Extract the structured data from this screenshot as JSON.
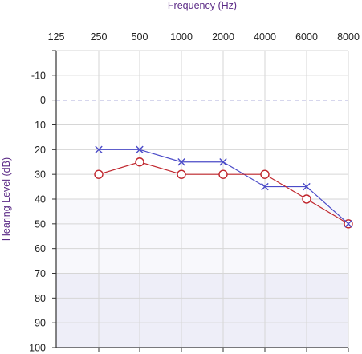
{
  "chart_data": {
    "type": "line",
    "title": "",
    "xlabel": "Frequency (Hz)",
    "ylabel": "Hearing Level (dB)",
    "x_categories": [
      "125",
      "250",
      "500",
      "1000",
      "2000",
      "4000",
      "6000",
      "8000"
    ],
    "y_ticks": [
      "-10",
      "0",
      "10",
      "20",
      "30",
      "40",
      "50",
      "60",
      "70",
      "80",
      "90",
      "100"
    ],
    "ylim": [
      -20,
      100
    ],
    "y_inverted": true,
    "grid": true,
    "reference_line": {
      "y": 0,
      "style": "dashed",
      "color": "#5b5bb8"
    },
    "shaded_bands": [
      {
        "from": 40,
        "to": 70,
        "color": "#f8f8fc"
      },
      {
        "from": 70,
        "to": 100,
        "color": "#eeeef8"
      }
    ],
    "series": [
      {
        "marker": "x",
        "color": "#4b4bc8",
        "points": [
          {
            "x": "250",
            "y": 20
          },
          {
            "x": "500",
            "y": 20
          },
          {
            "x": "1000",
            "y": 25
          },
          {
            "x": "2000",
            "y": 25
          },
          {
            "x": "4000",
            "y": 35
          },
          {
            "x": "6000",
            "y": 35
          },
          {
            "x": "8000",
            "y": 50
          }
        ]
      },
      {
        "marker": "circle",
        "color": "#c0262d",
        "points": [
          {
            "x": "250",
            "y": 30
          },
          {
            "x": "500",
            "y": 25
          },
          {
            "x": "1000",
            "y": 30
          },
          {
            "x": "2000",
            "y": 30
          },
          {
            "x": "4000",
            "y": 30
          },
          {
            "x": "6000",
            "y": 40
          },
          {
            "x": "8000",
            "y": 50
          }
        ]
      }
    ]
  }
}
